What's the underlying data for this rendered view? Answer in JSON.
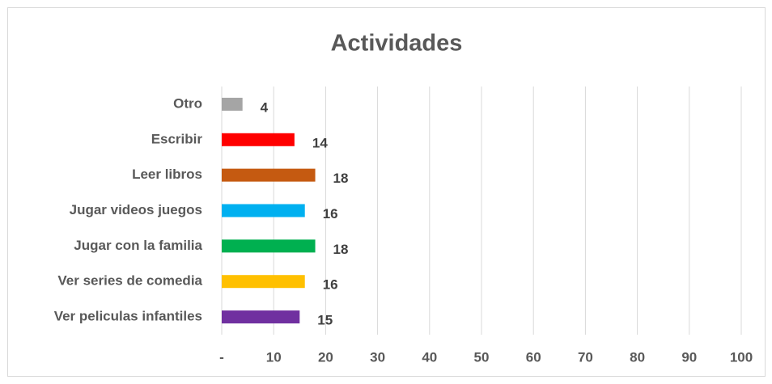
{
  "chart_data": {
    "type": "bar",
    "orientation": "horizontal",
    "title": "Actividades",
    "categories": [
      "Otro",
      "Escribir",
      "Leer libros",
      "Jugar videos juegos",
      "Jugar con la familia",
      "Ver series de comedia",
      "Ver peliculas infantiles"
    ],
    "values": [
      4,
      14,
      18,
      16,
      18,
      16,
      15
    ],
    "colors": [
      "#a5a5a5",
      "#ff0000",
      "#c55a11",
      "#00b0f0",
      "#00b050",
      "#ffc000",
      "#7030a0"
    ],
    "xlim": [
      0,
      100
    ],
    "xticks": [
      {
        "value": 0,
        "label": "-"
      },
      10,
      20,
      30,
      40,
      50,
      60,
      70,
      80,
      90,
      100
    ],
    "grid": true
  }
}
